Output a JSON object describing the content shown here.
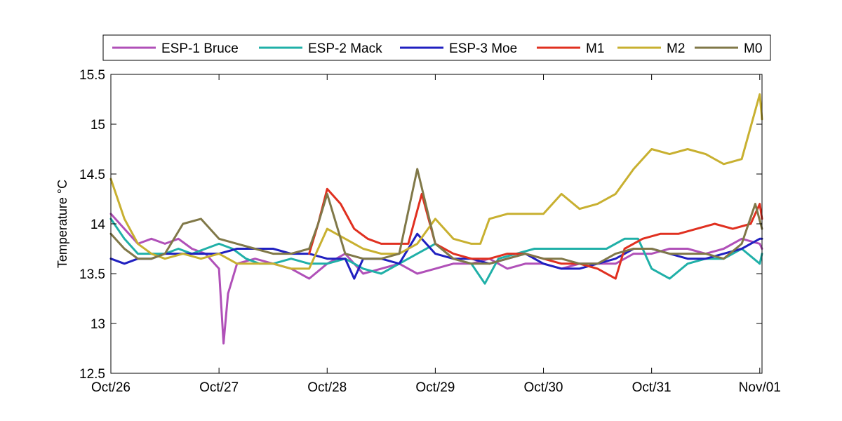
{
  "chart_data": {
    "type": "line",
    "title": "",
    "xlabel": "",
    "ylabel": "Temperature °C",
    "xlim": [
      "Oct/26 00:00",
      "Nov/01 00:30"
    ],
    "ylim": [
      12.5,
      15.5
    ],
    "x_ticks": [
      "Oct/26",
      "Oct/27",
      "Oct/28",
      "Oct/29",
      "Oct/30",
      "Oct/31",
      "Nov/01"
    ],
    "y_ticks": [
      "12.5",
      "13",
      "13.5",
      "14",
      "14.5",
      "15",
      "15.5"
    ],
    "grid": false,
    "legend_position": "top, outside plot",
    "series": [
      {
        "name": "ESP-1 Bruce",
        "color": "#b050b8",
        "points": [
          [
            "Oct/26 00:00",
            14.1
          ],
          [
            "Oct/26 03:00",
            13.95
          ],
          [
            "Oct/26 06:00",
            13.8
          ],
          [
            "Oct/26 09:00",
            13.85
          ],
          [
            "Oct/26 12:00",
            13.8
          ],
          [
            "Oct/26 15:00",
            13.85
          ],
          [
            "Oct/26 18:00",
            13.75
          ],
          [
            "Oct/26 21:00",
            13.7
          ],
          [
            "Oct/27 00:00",
            13.55
          ],
          [
            "Oct/27 01:00",
            12.8
          ],
          [
            "Oct/27 02:00",
            13.3
          ],
          [
            "Oct/27 04:00",
            13.6
          ],
          [
            "Oct/27 08:00",
            13.65
          ],
          [
            "Oct/27 12:00",
            13.6
          ],
          [
            "Oct/27 16:00",
            13.55
          ],
          [
            "Oct/27 20:00",
            13.45
          ],
          [
            "Oct/28 00:00",
            13.6
          ],
          [
            "Oct/28 04:00",
            13.7
          ],
          [
            "Oct/28 08:00",
            13.5
          ],
          [
            "Oct/28 12:00",
            13.55
          ],
          [
            "Oct/28 16:00",
            13.6
          ],
          [
            "Oct/28 20:00",
            13.5
          ],
          [
            "Oct/29 00:00",
            13.55
          ],
          [
            "Oct/29 04:00",
            13.6
          ],
          [
            "Oct/29 08:00",
            13.6
          ],
          [
            "Oct/29 12:00",
            13.65
          ],
          [
            "Oct/29 16:00",
            13.55
          ],
          [
            "Oct/29 20:00",
            13.6
          ],
          [
            "Oct/30 00:00",
            13.6
          ],
          [
            "Oct/30 04:00",
            13.55
          ],
          [
            "Oct/30 08:00",
            13.6
          ],
          [
            "Oct/30 12:00",
            13.6
          ],
          [
            "Oct/30 16:00",
            13.6
          ],
          [
            "Oct/30 20:00",
            13.7
          ],
          [
            "Oct/31 00:00",
            13.7
          ],
          [
            "Oct/31 04:00",
            13.75
          ],
          [
            "Oct/31 08:00",
            13.75
          ],
          [
            "Oct/31 12:00",
            13.7
          ],
          [
            "Oct/31 16:00",
            13.75
          ],
          [
            "Oct/31 20:00",
            13.85
          ],
          [
            "Nov/01 00:00",
            13.8
          ],
          [
            "Nov/01 00:30",
            13.75
          ]
        ]
      },
      {
        "name": "ESP-2 Mack",
        "color": "#20b0a8",
        "points": [
          [
            "Oct/26 00:00",
            14.05
          ],
          [
            "Oct/26 03:00",
            13.85
          ],
          [
            "Oct/26 06:00",
            13.7
          ],
          [
            "Oct/26 09:00",
            13.7
          ],
          [
            "Oct/26 12:00",
            13.7
          ],
          [
            "Oct/26 15:00",
            13.75
          ],
          [
            "Oct/26 18:00",
            13.7
          ],
          [
            "Oct/26 21:00",
            13.75
          ],
          [
            "Oct/27 00:00",
            13.8
          ],
          [
            "Oct/27 03:00",
            13.75
          ],
          [
            "Oct/27 06:00",
            13.65
          ],
          [
            "Oct/27 09:00",
            13.6
          ],
          [
            "Oct/27 12:00",
            13.6
          ],
          [
            "Oct/27 16:00",
            13.65
          ],
          [
            "Oct/27 20:00",
            13.6
          ],
          [
            "Oct/28 00:00",
            13.6
          ],
          [
            "Oct/28 04:00",
            13.65
          ],
          [
            "Oct/28 08:00",
            13.55
          ],
          [
            "Oct/28 12:00",
            13.5
          ],
          [
            "Oct/28 16:00",
            13.6
          ],
          [
            "Oct/28 20:00",
            13.7
          ],
          [
            "Oct/29 00:00",
            13.8
          ],
          [
            "Oct/29 04:00",
            13.65
          ],
          [
            "Oct/29 08:00",
            13.6
          ],
          [
            "Oct/29 11:00",
            13.4
          ],
          [
            "Oct/29 14:00",
            13.65
          ],
          [
            "Oct/29 18:00",
            13.7
          ],
          [
            "Oct/29 22:00",
            13.75
          ],
          [
            "Oct/30 02:00",
            13.75
          ],
          [
            "Oct/30 06:00",
            13.75
          ],
          [
            "Oct/30 10:00",
            13.75
          ],
          [
            "Oct/30 14:00",
            13.75
          ],
          [
            "Oct/30 18:00",
            13.85
          ],
          [
            "Oct/30 21:00",
            13.85
          ],
          [
            "Oct/31 00:00",
            13.55
          ],
          [
            "Oct/31 04:00",
            13.45
          ],
          [
            "Oct/31 08:00",
            13.6
          ],
          [
            "Oct/31 12:00",
            13.65
          ],
          [
            "Oct/31 16:00",
            13.65
          ],
          [
            "Oct/31 20:00",
            13.75
          ],
          [
            "Nov/01 00:00",
            13.6
          ],
          [
            "Nov/01 00:30",
            13.7
          ]
        ]
      },
      {
        "name": "ESP-3 Moe",
        "color": "#2020c0",
        "points": [
          [
            "Oct/26 00:00",
            13.65
          ],
          [
            "Oct/26 03:00",
            13.6
          ],
          [
            "Oct/26 06:00",
            13.65
          ],
          [
            "Oct/26 09:00",
            13.65
          ],
          [
            "Oct/26 12:00",
            13.7
          ],
          [
            "Oct/26 16:00",
            13.7
          ],
          [
            "Oct/26 20:00",
            13.7
          ],
          [
            "Oct/27 00:00",
            13.7
          ],
          [
            "Oct/27 04:00",
            13.75
          ],
          [
            "Oct/27 08:00",
            13.75
          ],
          [
            "Oct/27 12:00",
            13.75
          ],
          [
            "Oct/27 16:00",
            13.7
          ],
          [
            "Oct/27 20:00",
            13.7
          ],
          [
            "Oct/28 00:00",
            13.65
          ],
          [
            "Oct/28 04:00",
            13.65
          ],
          [
            "Oct/28 06:00",
            13.45
          ],
          [
            "Oct/28 08:00",
            13.65
          ],
          [
            "Oct/28 12:00",
            13.65
          ],
          [
            "Oct/28 16:00",
            13.6
          ],
          [
            "Oct/28 20:00",
            13.9
          ],
          [
            "Oct/29 00:00",
            13.7
          ],
          [
            "Oct/29 04:00",
            13.65
          ],
          [
            "Oct/29 08:00",
            13.65
          ],
          [
            "Oct/29 12:00",
            13.6
          ],
          [
            "Oct/29 16:00",
            13.65
          ],
          [
            "Oct/29 20:00",
            13.7
          ],
          [
            "Oct/30 00:00",
            13.6
          ],
          [
            "Oct/30 04:00",
            13.55
          ],
          [
            "Oct/30 08:00",
            13.55
          ],
          [
            "Oct/30 12:00",
            13.6
          ],
          [
            "Oct/30 16:00",
            13.65
          ],
          [
            "Oct/30 20:00",
            13.75
          ],
          [
            "Oct/31 00:00",
            13.75
          ],
          [
            "Oct/31 04:00",
            13.7
          ],
          [
            "Oct/31 08:00",
            13.65
          ],
          [
            "Oct/31 12:00",
            13.65
          ],
          [
            "Oct/31 16:00",
            13.7
          ],
          [
            "Oct/31 20:00",
            13.75
          ],
          [
            "Nov/01 00:00",
            13.85
          ],
          [
            "Nov/01 00:30",
            13.85
          ]
        ]
      },
      {
        "name": "M1",
        "color": "#e03020",
        "points": [
          [
            "Oct/27 20:00",
            13.7
          ],
          [
            "Oct/27 22:00",
            14.0
          ],
          [
            "Oct/28 00:00",
            14.35
          ],
          [
            "Oct/28 03:00",
            14.2
          ],
          [
            "Oct/28 06:00",
            13.95
          ],
          [
            "Oct/28 09:00",
            13.85
          ],
          [
            "Oct/28 12:00",
            13.8
          ],
          [
            "Oct/28 15:00",
            13.8
          ],
          [
            "Oct/28 18:00",
            13.8
          ],
          [
            "Oct/28 21:00",
            14.3
          ],
          [
            "Oct/29 00:00",
            13.8
          ],
          [
            "Oct/29 04:00",
            13.7
          ],
          [
            "Oct/29 08:00",
            13.65
          ],
          [
            "Oct/29 12:00",
            13.65
          ],
          [
            "Oct/29 16:00",
            13.7
          ],
          [
            "Oct/29 20:00",
            13.7
          ],
          [
            "Oct/30 00:00",
            13.65
          ],
          [
            "Oct/30 04:00",
            13.6
          ],
          [
            "Oct/30 08:00",
            13.6
          ],
          [
            "Oct/30 12:00",
            13.55
          ],
          [
            "Oct/30 16:00",
            13.45
          ],
          [
            "Oct/30 18:00",
            13.75
          ],
          [
            "Oct/30 22:00",
            13.85
          ],
          [
            "Oct/31 02:00",
            13.9
          ],
          [
            "Oct/31 06:00",
            13.9
          ],
          [
            "Oct/31 10:00",
            13.95
          ],
          [
            "Oct/31 14:00",
            14.0
          ],
          [
            "Oct/31 18:00",
            13.95
          ],
          [
            "Oct/31 22:00",
            14.0
          ],
          [
            "Nov/01 00:00",
            14.2
          ],
          [
            "Nov/01 00:30",
            14.05
          ]
        ]
      },
      {
        "name": "M2",
        "color": "#c8b030",
        "points": [
          [
            "Oct/26 00:00",
            14.45
          ],
          [
            "Oct/26 03:00",
            14.05
          ],
          [
            "Oct/26 06:00",
            13.8
          ],
          [
            "Oct/26 09:00",
            13.7
          ],
          [
            "Oct/26 12:00",
            13.65
          ],
          [
            "Oct/26 16:00",
            13.7
          ],
          [
            "Oct/26 20:00",
            13.65
          ],
          [
            "Oct/27 00:00",
            13.7
          ],
          [
            "Oct/27 04:00",
            13.6
          ],
          [
            "Oct/27 08:00",
            13.6
          ],
          [
            "Oct/27 12:00",
            13.6
          ],
          [
            "Oct/27 16:00",
            13.55
          ],
          [
            "Oct/27 20:00",
            13.55
          ],
          [
            "Oct/28 00:00",
            13.95
          ],
          [
            "Oct/28 04:00",
            13.85
          ],
          [
            "Oct/28 08:00",
            13.75
          ],
          [
            "Oct/28 12:00",
            13.7
          ],
          [
            "Oct/28 16:00",
            13.7
          ],
          [
            "Oct/28 20:00",
            13.8
          ],
          [
            "Oct/29 00:00",
            14.05
          ],
          [
            "Oct/29 04:00",
            13.85
          ],
          [
            "Oct/29 08:00",
            13.8
          ],
          [
            "Oct/29 10:00",
            13.8
          ],
          [
            "Oct/29 12:00",
            14.05
          ],
          [
            "Oct/29 16:00",
            14.1
          ],
          [
            "Oct/29 20:00",
            14.1
          ],
          [
            "Oct/30 00:00",
            14.1
          ],
          [
            "Oct/30 04:00",
            14.3
          ],
          [
            "Oct/30 08:00",
            14.15
          ],
          [
            "Oct/30 12:00",
            14.2
          ],
          [
            "Oct/30 16:00",
            14.3
          ],
          [
            "Oct/30 20:00",
            14.55
          ],
          [
            "Oct/31 00:00",
            14.75
          ],
          [
            "Oct/31 04:00",
            14.7
          ],
          [
            "Oct/31 08:00",
            14.75
          ],
          [
            "Oct/31 12:00",
            14.7
          ],
          [
            "Oct/31 16:00",
            14.6
          ],
          [
            "Oct/31 20:00",
            14.65
          ],
          [
            "Nov/01 00:00",
            15.3
          ],
          [
            "Nov/01 00:30",
            15.05
          ]
        ]
      },
      {
        "name": "M0",
        "color": "#807848",
        "points": [
          [
            "Oct/26 00:00",
            13.9
          ],
          [
            "Oct/26 03:00",
            13.75
          ],
          [
            "Oct/26 06:00",
            13.65
          ],
          [
            "Oct/26 09:00",
            13.65
          ],
          [
            "Oct/26 12:00",
            13.7
          ],
          [
            "Oct/26 16:00",
            14.0
          ],
          [
            "Oct/26 20:00",
            14.05
          ],
          [
            "Oct/27 00:00",
            13.85
          ],
          [
            "Oct/27 04:00",
            13.8
          ],
          [
            "Oct/27 08:00",
            13.75
          ],
          [
            "Oct/27 12:00",
            13.7
          ],
          [
            "Oct/27 16:00",
            13.7
          ],
          [
            "Oct/27 20:00",
            13.75
          ],
          [
            "Oct/27 22:00",
            14.0
          ],
          [
            "Oct/28 00:00",
            14.3
          ],
          [
            "Oct/28 04:00",
            13.7
          ],
          [
            "Oct/28 08:00",
            13.65
          ],
          [
            "Oct/28 12:00",
            13.65
          ],
          [
            "Oct/28 16:00",
            13.7
          ],
          [
            "Oct/28 20:00",
            14.55
          ],
          [
            "Oct/29 00:00",
            13.8
          ],
          [
            "Oct/29 04:00",
            13.65
          ],
          [
            "Oct/29 08:00",
            13.6
          ],
          [
            "Oct/29 12:00",
            13.6
          ],
          [
            "Oct/29 16:00",
            13.65
          ],
          [
            "Oct/29 20:00",
            13.7
          ],
          [
            "Oct/30 00:00",
            13.65
          ],
          [
            "Oct/30 04:00",
            13.65
          ],
          [
            "Oct/30 08:00",
            13.6
          ],
          [
            "Oct/30 12:00",
            13.6
          ],
          [
            "Oct/30 16:00",
            13.7
          ],
          [
            "Oct/30 20:00",
            13.75
          ],
          [
            "Oct/31 00:00",
            13.75
          ],
          [
            "Oct/31 04:00",
            13.7
          ],
          [
            "Oct/31 08:00",
            13.7
          ],
          [
            "Oct/31 12:00",
            13.7
          ],
          [
            "Oct/31 16:00",
            13.65
          ],
          [
            "Oct/31 20:00",
            13.8
          ],
          [
            "Oct/31 23:00",
            14.2
          ],
          [
            "Nov/01 00:30",
            13.95
          ]
        ]
      }
    ]
  }
}
